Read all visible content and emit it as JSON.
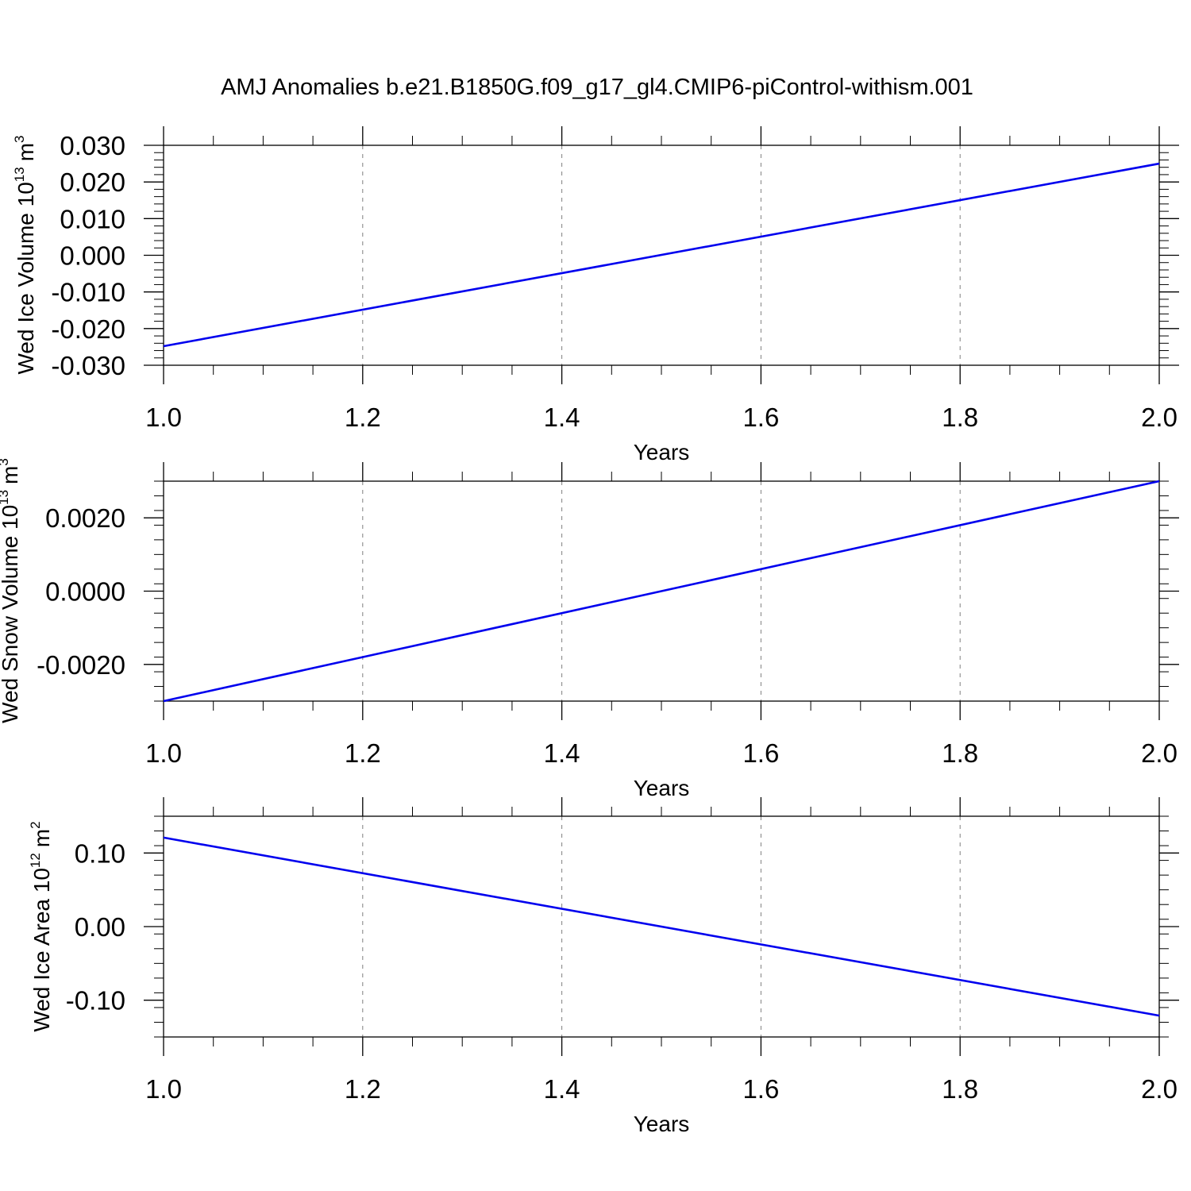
{
  "chart_data": [
    {
      "type": "line",
      "title": "AMJ Anomalies b.e21.B1850G.f09_g17_gl4.CMIP6-piControl-withism.001",
      "xlabel": "Years",
      "ylabel": "Wed Ice Volume 10",
      "ylabel_exp": "13",
      "ylabel_unit": "m",
      "ylabel_unit_exp": "3",
      "xlim": [
        1.0,
        2.0
      ],
      "ylim": [
        -0.03,
        0.03
      ],
      "xticks": [
        1.0,
        1.2,
        1.4,
        1.6,
        1.8,
        2.0
      ],
      "xtick_labels": [
        "1.0",
        "1.2",
        "1.4",
        "1.6",
        "1.8",
        "2.0"
      ],
      "yticks": [
        0.03,
        0.02,
        0.01,
        0.0,
        -0.01,
        -0.02,
        -0.03
      ],
      "ytick_labels": [
        "0.030",
        "0.020",
        "0.010",
        "0.000",
        "-0.010",
        "-0.020",
        "-0.030"
      ],
      "grid": "vertical dashed",
      "series": [
        {
          "color": "#0000ee",
          "x": [
            1.0,
            2.0
          ],
          "y": [
            -0.0248,
            0.025
          ]
        }
      ]
    },
    {
      "type": "line",
      "xlabel": "Years",
      "ylabel": "Wed Snow Volume 10",
      "ylabel_exp": "13",
      "ylabel_unit": "m",
      "ylabel_unit_exp": "3",
      "xlim": [
        1.0,
        2.0
      ],
      "ylim": [
        -0.003,
        0.003
      ],
      "xticks": [
        1.0,
        1.2,
        1.4,
        1.6,
        1.8,
        2.0
      ],
      "xtick_labels": [
        "1.0",
        "1.2",
        "1.4",
        "1.6",
        "1.8",
        "2.0"
      ],
      "yticks": [
        0.002,
        0.0,
        -0.002
      ],
      "ytick_labels": [
        "0.0020",
        "0.0000",
        "-0.0020"
      ],
      "grid": "vertical dashed",
      "series": [
        {
          "color": "#0000ee",
          "x": [
            1.0,
            2.0
          ],
          "y": [
            -0.003,
            0.003
          ]
        }
      ]
    },
    {
      "type": "line",
      "xlabel": "Years",
      "ylabel": "Wed Ice Area 10",
      "ylabel_exp": "12",
      "ylabel_unit": "m",
      "ylabel_unit_exp": "2",
      "xlim": [
        1.0,
        2.0
      ],
      "ylim": [
        -0.15,
        0.15
      ],
      "xticks": [
        1.0,
        1.2,
        1.4,
        1.6,
        1.8,
        2.0
      ],
      "xtick_labels": [
        "1.0",
        "1.2",
        "1.4",
        "1.6",
        "1.8",
        "2.0"
      ],
      "yticks": [
        0.1,
        0.0,
        -0.1
      ],
      "ytick_labels": [
        "0.10",
        "0.00",
        "-0.10"
      ],
      "grid": "vertical dashed",
      "series": [
        {
          "color": "#0000ee",
          "x": [
            1.0,
            2.0
          ],
          "y": [
            0.121,
            -0.121
          ]
        }
      ]
    }
  ]
}
